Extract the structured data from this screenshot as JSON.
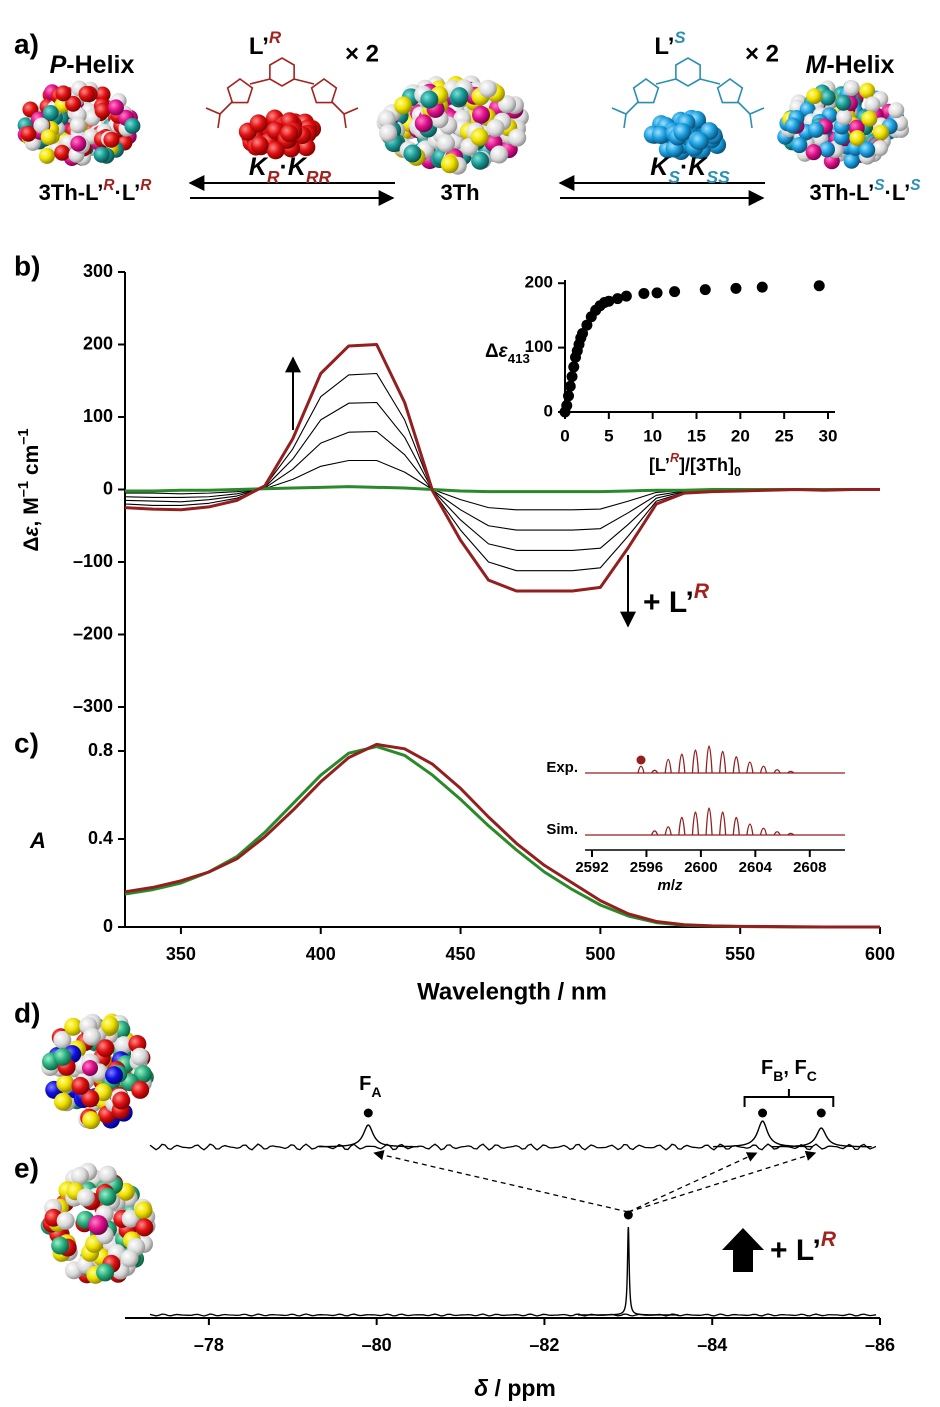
{
  "scheme": {
    "panel": "a)",
    "left": {
      "title": [
        "P",
        "-Helix"
      ],
      "complex": [
        "3Th-L’",
        "R",
        "·L’",
        "R"
      ]
    },
    "center": {
      "complex": "3Th"
    },
    "right": {
      "title": [
        "M",
        "-Helix"
      ],
      "complex": [
        "3Th-L’",
        "S",
        "·L’",
        "S"
      ]
    },
    "ligand_left": {
      "name": [
        "L’",
        "R"
      ],
      "multiplier": "× 2",
      "constant": [
        "K",
        "R",
        "·",
        "K",
        "RR"
      ]
    },
    "ligand_right": {
      "name": [
        "L’",
        "S"
      ],
      "multiplier": "× 2",
      "constant": [
        "K",
        "S",
        "·",
        "K",
        "SS"
      ]
    }
  },
  "chart_data": [
    {
      "panel": "b)",
      "type": "line",
      "y_label": [
        "Δ",
        "ε",
        ", M",
        "–1",
        " cm",
        "–1"
      ],
      "x": [
        330,
        340,
        350,
        360,
        370,
        380,
        390,
        400,
        410,
        420,
        430,
        440,
        450,
        460,
        470,
        480,
        490,
        500,
        510,
        520,
        530,
        540,
        550,
        560,
        570,
        580,
        590,
        600
      ],
      "xlim": [
        330,
        600
      ],
      "ylim": [
        -300,
        300
      ],
      "yticks": [
        {
          "value": -300,
          "label": "–300"
        },
        {
          "value": -200,
          "label": "–200"
        },
        {
          "value": -100,
          "label": "–100"
        },
        0,
        100,
        200,
        300
      ],
      "series": [
        {
          "color": "#000000",
          "values": [
            -5,
            -5,
            -6,
            -5,
            -3,
            1,
            14,
            32,
            40,
            40,
            24,
            0,
            -14,
            -25,
            -28,
            -28,
            -28,
            -27,
            -16,
            -4,
            -1,
            -1,
            0,
            0,
            0,
            0,
            0,
            0
          ]
        },
        {
          "color": "#000000",
          "values": [
            -10,
            -11,
            -11,
            -10,
            -6,
            2,
            28,
            64,
            79,
            80,
            48,
            -1,
            -28,
            -50,
            -56,
            -56,
            -56,
            -54,
            -32,
            -8,
            -2,
            -1,
            -1,
            0,
            0,
            0,
            0,
            0
          ]
        },
        {
          "color": "#000000",
          "values": [
            -15,
            -16,
            -17,
            -14,
            -9,
            3,
            42,
            96,
            119,
            120,
            72,
            -1,
            -42,
            -75,
            -84,
            -84,
            -84,
            -81,
            -48,
            -12,
            -3,
            -2,
            -1,
            -1,
            0,
            -1,
            0,
            0
          ]
        },
        {
          "color": "#000000",
          "values": [
            -20,
            -22,
            -22,
            -19,
            -12,
            4,
            56,
            128,
            158,
            160,
            96,
            -2,
            -56,
            -100,
            -112,
            -112,
            -112,
            -108,
            -64,
            -16,
            -4,
            -2,
            -2,
            -1,
            0,
            -1,
            0,
            0
          ]
        },
        {
          "color": "#2a8a2a",
          "values": [
            -2,
            -2,
            -1,
            -1,
            0,
            1,
            2,
            3,
            4,
            3,
            2,
            0,
            -2,
            -3,
            -3,
            -3,
            -3,
            -3,
            -2,
            -1,
            -1,
            0,
            0,
            0,
            0,
            0,
            0,
            0
          ]
        },
        {
          "color": "#931f1f",
          "values": [
            -25,
            -27,
            -28,
            -24,
            -15,
            5,
            70,
            160,
            198,
            200,
            120,
            -2,
            -70,
            -125,
            -140,
            -140,
            -140,
            -135,
            -80,
            -20,
            -5,
            -3,
            -2,
            -1,
            0,
            -1,
            0,
            0
          ]
        }
      ],
      "annotation": [
        "+ L’",
        "R"
      ]
    },
    {
      "type": "scatter",
      "color": "#000000",
      "x": [
        0,
        0.2,
        0.4,
        0.6,
        0.8,
        1,
        1.2,
        1.4,
        1.6,
        1.8,
        2,
        2.5,
        3,
        3.5,
        4,
        4.5,
        5,
        6,
        7,
        9,
        10.5,
        12.5,
        16,
        19.5,
        22.5,
        29
      ],
      "values": [
        0,
        10,
        25,
        40,
        55,
        70,
        85,
        95,
        105,
        115,
        122,
        135,
        148,
        158,
        165,
        170,
        172,
        176,
        180,
        184,
        185,
        187,
        190,
        192,
        194,
        196
      ],
      "xlim": [
        0,
        30
      ],
      "xticks": [
        0,
        5,
        10,
        15,
        20,
        25,
        30
      ],
      "ylim": [
        0,
        205
      ],
      "yticks": [
        0,
        100,
        200
      ],
      "x_label": [
        "[L’",
        "R",
        "]/[3Th]",
        "0"
      ],
      "y_label": [
        "Δ",
        "ε",
        "413"
      ]
    },
    {
      "panel": "c)",
      "type": "line",
      "x": [
        330,
        340,
        350,
        360,
        370,
        380,
        390,
        400,
        410,
        420,
        430,
        440,
        450,
        460,
        470,
        480,
        490,
        500,
        510,
        520,
        530,
        540,
        550,
        560,
        570,
        580,
        590,
        600
      ],
      "xlim": [
        330,
        600
      ],
      "xticks": [
        350,
        400,
        450,
        500,
        550,
        600
      ],
      "ylim": [
        0,
        1
      ],
      "yticks": [
        0,
        0.4,
        0.8
      ],
      "x_label": "Wavelength / nm",
      "y_label": "A",
      "series": [
        {
          "color": "#2a8a2a",
          "values": [
            0.15,
            0.17,
            0.2,
            0.25,
            0.32,
            0.43,
            0.56,
            0.69,
            0.79,
            0.82,
            0.78,
            0.69,
            0.58,
            0.46,
            0.35,
            0.25,
            0.17,
            0.1,
            0.05,
            0.02,
            0.008,
            0.004,
            0.002,
            0.001,
            0,
            0,
            0,
            0
          ]
        },
        {
          "color": "#931f1f",
          "values": [
            0.16,
            0.18,
            0.21,
            0.25,
            0.31,
            0.41,
            0.53,
            0.66,
            0.77,
            0.83,
            0.81,
            0.74,
            0.63,
            0.5,
            0.38,
            0.28,
            0.2,
            0.12,
            0.06,
            0.025,
            0.01,
            0.005,
            0.003,
            0.002,
            0.001,
            0,
            0,
            0
          ]
        }
      ]
    },
    {
      "type": "stem",
      "color": "#931f1f",
      "xlim": [
        2592,
        2610
      ],
      "xticks": [
        2592,
        2596,
        2600,
        2604,
        2608
      ],
      "x_label": [
        "m",
        "/",
        "z"
      ],
      "series": [
        {
          "name": "Exp.",
          "x": [
            2595.6,
            2596.6,
            2597.6,
            2598.6,
            2599.6,
            2600.6,
            2601.6,
            2602.6,
            2603.6,
            2604.6,
            2605.6,
            2606.6
          ],
          "values": [
            25,
            10,
            50,
            70,
            85,
            100,
            80,
            60,
            40,
            25,
            12,
            6
          ]
        },
        {
          "name": "Sim.",
          "x": [
            2596.6,
            2597.6,
            2598.6,
            2599.6,
            2600.6,
            2601.6,
            2602.6,
            2603.6,
            2604.6,
            2605.6,
            2606.6
          ],
          "values": [
            15,
            30,
            65,
            85,
            100,
            85,
            65,
            40,
            25,
            12,
            6
          ]
        }
      ],
      "marker_x": 2595.6
    },
    {
      "type": "nmr",
      "xlim": [
        -77,
        -86
      ],
      "xticks": [
        {
          "value": -78,
          "label": "–78"
        },
        {
          "value": -80,
          "label": "–80"
        },
        {
          "value": -82,
          "label": "–82"
        },
        {
          "value": -84,
          "label": "–84"
        },
        {
          "value": -86,
          "label": "–86"
        }
      ],
      "x_label": [
        "δ",
        " / ppm"
      ],
      "spectra": [
        {
          "panel": "d)",
          "peaks": [
            {
              "position": -79.9,
              "height": 22,
              "label": [
                "F",
                "A"
              ]
            },
            {
              "position": -84.6,
              "height": 26
            },
            {
              "position": -85.3,
              "height": 19
            }
          ],
          "group_label": [
            "F",
            "B",
            ", F",
            "C"
          ]
        },
        {
          "panel": "e)",
          "peaks": [
            {
              "position": -83.0,
              "height": 88
            }
          ],
          "annotation": [
            "+ L’",
            "R"
          ]
        }
      ]
    }
  ]
}
